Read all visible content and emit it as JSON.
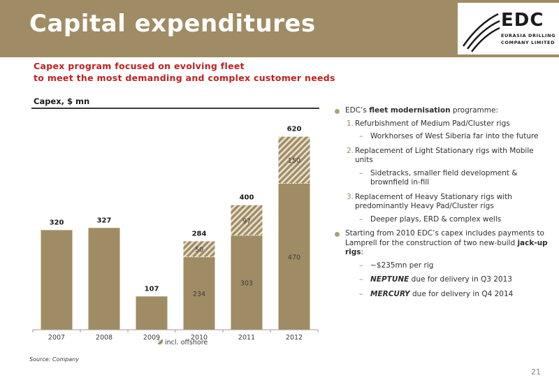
{
  "header": {
    "title": "Capital expenditures",
    "logo": {
      "name": "EDC",
      "line1": "EURASIA DRILLING",
      "line2": "COMPANY LIMITED"
    }
  },
  "subtitle": {
    "line1": "Capex program focused on evolving fleet",
    "line2": "to meet the most demanding and complex customer needs"
  },
  "chart_label": "Capex, $ mn",
  "chart_data": {
    "type": "bar",
    "categories": [
      "2007",
      "2008",
      "2009",
      "2010",
      "2011",
      "2012"
    ],
    "series": [
      {
        "values": [
          320,
          327,
          107,
          234,
          303,
          470
        ]
      },
      {
        "name": "incl. offshore",
        "values": [
          null,
          null,
          null,
          50,
          97,
          150
        ]
      }
    ],
    "totals": [
      320,
      327,
      107,
      284,
      400,
      620
    ],
    "segment_labels_base": [
      null,
      null,
      null,
      "234",
      "303",
      "470"
    ],
    "segment_labels_offshore": [
      null,
      null,
      null,
      "50",
      "97",
      "150"
    ],
    "total_labels": [
      "320",
      "327",
      "107",
      "284",
      "400",
      "620"
    ],
    "ylim": [
      0,
      700
    ],
    "legend_position": "bottom",
    "colors": {
      "base": "#a08c64",
      "offshore": "#a08c64",
      "hatch": "#ffffff"
    }
  },
  "source": "Source: Company",
  "page_number": "21",
  "bullets": {
    "b1_pre": "EDC’s ",
    "b1_bold": "fleet modernisation",
    "b1_post": " programme:",
    "n1_num": "1.",
    "n1_text": "Refurbishment of Medium Pad/Cluster rigs",
    "d1_text": "Workhorses of West Siberia far into the future",
    "n2_num": "2.",
    "n2_text": "Replacement of Light Stationary rigs with Mobile units",
    "d2_text": "Sidetracks, smaller field development & brownfield in-fill",
    "n3_num": "3.",
    "n3_text": "Replacement of Heavy Stationary rigs with predominantly Heavy Pad/Cluster rigs",
    "d3_text": "Deeper plays, ERD & complex wells",
    "b2_pre": "Starting from 2010 EDC’s capex includes payments to Lamprell for the construction of two new-build ",
    "b2_bold": "jack-up rigs",
    "b2_post": ":",
    "d4_text": "~$235mn per rig",
    "d5_bold": "NEPTUNE",
    "d5_post": " due for delivery in Q3 2013",
    "d6_bold": "MERCURY",
    "d6_post": " due for delivery in Q4 2014",
    "dash": "–"
  }
}
